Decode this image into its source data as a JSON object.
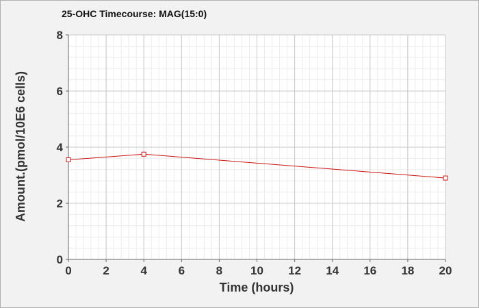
{
  "chart_data": {
    "type": "line",
    "title": "25-OHC Timecourse: MAG(15:0)",
    "xlabel": "Time (hours)",
    "ylabel": "Amount.(pmol/10E6 cells)",
    "xlim": [
      0,
      20
    ],
    "ylim": [
      0,
      8
    ],
    "xticks": [
      0,
      2,
      4,
      6,
      8,
      10,
      12,
      14,
      16,
      18,
      20
    ],
    "yticks": [
      0,
      2,
      4,
      6,
      8
    ],
    "grid": true,
    "series": [
      {
        "x": [
          0,
          4,
          20
        ],
        "y": [
          3.55,
          3.75,
          2.9
        ]
      }
    ]
  },
  "colors": {
    "series": "#cc1111",
    "plot_background": "#ffffff",
    "frame_background": "#f2f2f2",
    "major_grid": "#c8c8c8",
    "minor_grid": "#ececec"
  }
}
